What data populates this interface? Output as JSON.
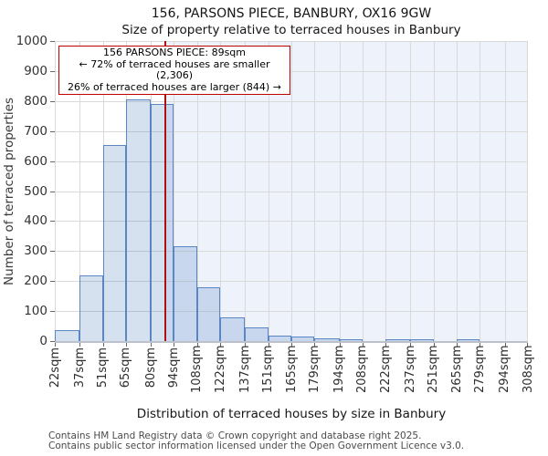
{
  "title": "156, PARSONS PIECE, BANBURY, OX16 9GW",
  "subtitle": "Size of property relative to terraced houses in Banbury",
  "annotation": {
    "line1": "156 PARSONS PIECE: 89sqm",
    "line2": "← 72% of terraced houses are smaller (2,306)",
    "line3": "26% of terraced houses are larger (844) →"
  },
  "chart_data": {
    "type": "bar",
    "title": "156, PARSONS PIECE, BANBURY, OX16 9GW",
    "subtitle": "Size of property relative to terraced houses in Banbury",
    "xlabel": "Distribution of terraced houses by size in Banbury",
    "ylabel": "Number of terraced properties",
    "ylim": [
      0,
      1000
    ],
    "ytick_step": 100,
    "grid": true,
    "tick_suffix": "sqm",
    "bin_edges_sqm": [
      22,
      37,
      51,
      65,
      80,
      94,
      108,
      122,
      137,
      151,
      165,
      179,
      194,
      208,
      222,
      237,
      251,
      265,
      279,
      294,
      308
    ],
    "values": [
      35,
      220,
      655,
      805,
      790,
      315,
      180,
      80,
      45,
      18,
      14,
      9,
      5,
      0,
      5,
      5,
      0,
      5,
      0,
      0
    ],
    "marker_value_sqm": 89,
    "colors": {
      "bar_fill": "rgba(93,134,197,0.25)",
      "bar_edge": "#5a87c4",
      "marker_line": "#b00f0f",
      "annotation_border": "#c00000",
      "gridline": "#d9d9d9",
      "background_right_of_marker": "#edf2fb"
    }
  },
  "footer": {
    "line1": "Contains HM Land Registry data © Crown copyright and database right 2025.",
    "line2": "Contains public sector information licensed under the Open Government Licence v3.0."
  }
}
